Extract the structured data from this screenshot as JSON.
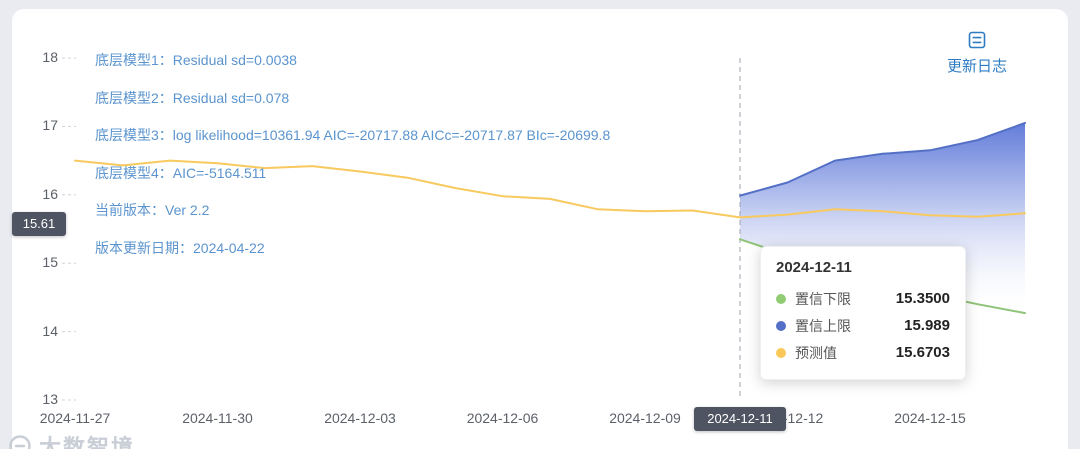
{
  "colors": {
    "page_bg": "#e9ebf0",
    "card_bg": "#ffffff",
    "badge_bg": "#4e5462",
    "annotation": "#5b94ce",
    "accent_blue": "#2d7cc3"
  },
  "update_log": {
    "label": "更新日志"
  },
  "annotations": [
    "底层模型1：Residual sd=0.0038",
    "底层模型2：Residual sd=0.078",
    "底层模型3：log likelihood=10361.94 AIC=-20717.88 AICc=-20717.87 BIc=-20699.8",
    "底层模型4：AIC=-5164.511",
    "当前版本：Ver 2.2",
    "版本更新日期：2024-04-22"
  ],
  "axis_pointer": {
    "y_label": "15.61",
    "x_label": "2024-12-11"
  },
  "tooltip": {
    "title": "2024-12-11",
    "rows": [
      {
        "name": "置信下限",
        "value": "15.3500",
        "color": "#91cc75"
      },
      {
        "name": "置信上限",
        "value": "15.989",
        "color": "#5470c6"
      },
      {
        "name": "预测值",
        "value": "15.6703",
        "color": "#fac858"
      }
    ]
  },
  "watermark": {
    "text": "大数智境"
  },
  "chart_data": {
    "type": "line",
    "title": "",
    "xlabel": "",
    "ylabel": "",
    "grid": false,
    "legend_position": "none",
    "ylim": [
      13,
      18
    ],
    "y_ticks": [
      13,
      14,
      15,
      16,
      17,
      18
    ],
    "x": [
      "2024-11-27",
      "2024-11-28",
      "2024-11-29",
      "2024-11-30",
      "2024-12-01",
      "2024-12-02",
      "2024-12-03",
      "2024-12-04",
      "2024-12-05",
      "2024-12-06",
      "2024-12-07",
      "2024-12-08",
      "2024-12-09",
      "2024-12-10",
      "2024-12-11",
      "2024-12-12",
      "2024-12-13",
      "2024-12-14",
      "2024-12-15",
      "2024-12-16",
      "2024-12-17"
    ],
    "x_ticks": [
      "2024-11-27",
      "2024-11-30",
      "2024-12-03",
      "2024-12-06",
      "2024-12-09",
      "2024-12-12",
      "2024-12-15"
    ],
    "hover_x": "2024-12-11",
    "axis_pointer_line_color": "#9da3ad",
    "band_fill": {
      "top": "#5b76d8",
      "bottom": "#ffffff"
    },
    "series": [
      {
        "name": "预测值",
        "color": "#f8c95e",
        "values": [
          16.5,
          16.43,
          16.5,
          16.46,
          16.39,
          16.42,
          16.34,
          16.25,
          16.1,
          15.98,
          15.94,
          15.79,
          15.76,
          15.77,
          15.6703,
          15.71,
          15.79,
          15.76,
          15.7,
          15.68,
          15.73
        ]
      },
      {
        "name": "置信上限",
        "color": "#5470c6",
        "values": [
          null,
          null,
          null,
          null,
          null,
          null,
          null,
          null,
          null,
          null,
          null,
          null,
          null,
          null,
          15.989,
          16.18,
          16.5,
          16.6,
          16.65,
          16.8,
          17.05
        ]
      },
      {
        "name": "置信下限",
        "color": "#8fc377",
        "values": [
          null,
          null,
          null,
          null,
          null,
          null,
          null,
          null,
          null,
          null,
          null,
          null,
          null,
          null,
          15.35,
          15.12,
          14.93,
          14.72,
          14.55,
          14.4,
          14.27
        ]
      }
    ]
  }
}
